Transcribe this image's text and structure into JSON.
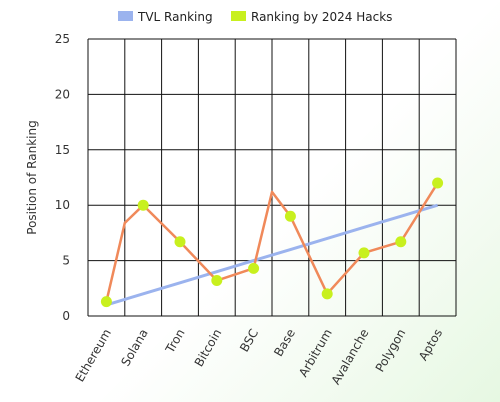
{
  "chart_data": {
    "type": "line",
    "categories": [
      "Ethereum",
      "Solana",
      "Tron",
      "Bitcoin",
      "BSC",
      "Base",
      "Arbitrum",
      "Avalanche",
      "Polygon",
      "Aptos"
    ],
    "ylabel": "Position of Ranking",
    "xlabel": "",
    "ylim": [
      0,
      25
    ],
    "yticks": [
      0,
      5,
      10,
      15,
      20,
      25
    ],
    "grid": true,
    "legend_position": "top-center",
    "series": [
      {
        "name": "TVL Ranking",
        "color": "#9bb3ee",
        "values": [
          1,
          2,
          3,
          4,
          5,
          6,
          7,
          8,
          9,
          10
        ]
      },
      {
        "name": "Ranking by 2024 Hacks",
        "line_color": "#f0895a",
        "marker_color": "#c8f01e",
        "values": [
          1.3,
          10,
          6.7,
          3.2,
          4.3,
          9,
          2,
          5.7,
          6.7,
          12
        ],
        "smoothed_path": [
          [
            0,
            1.3
          ],
          [
            0.5,
            8.4
          ],
          [
            1,
            10
          ],
          [
            2,
            6.7
          ],
          [
            3,
            3.2
          ],
          [
            4,
            4.3
          ],
          [
            4.5,
            11.2
          ],
          [
            5,
            9
          ],
          [
            6,
            2
          ],
          [
            7,
            5.7
          ],
          [
            8,
            6.7
          ],
          [
            9,
            12
          ]
        ]
      }
    ]
  }
}
